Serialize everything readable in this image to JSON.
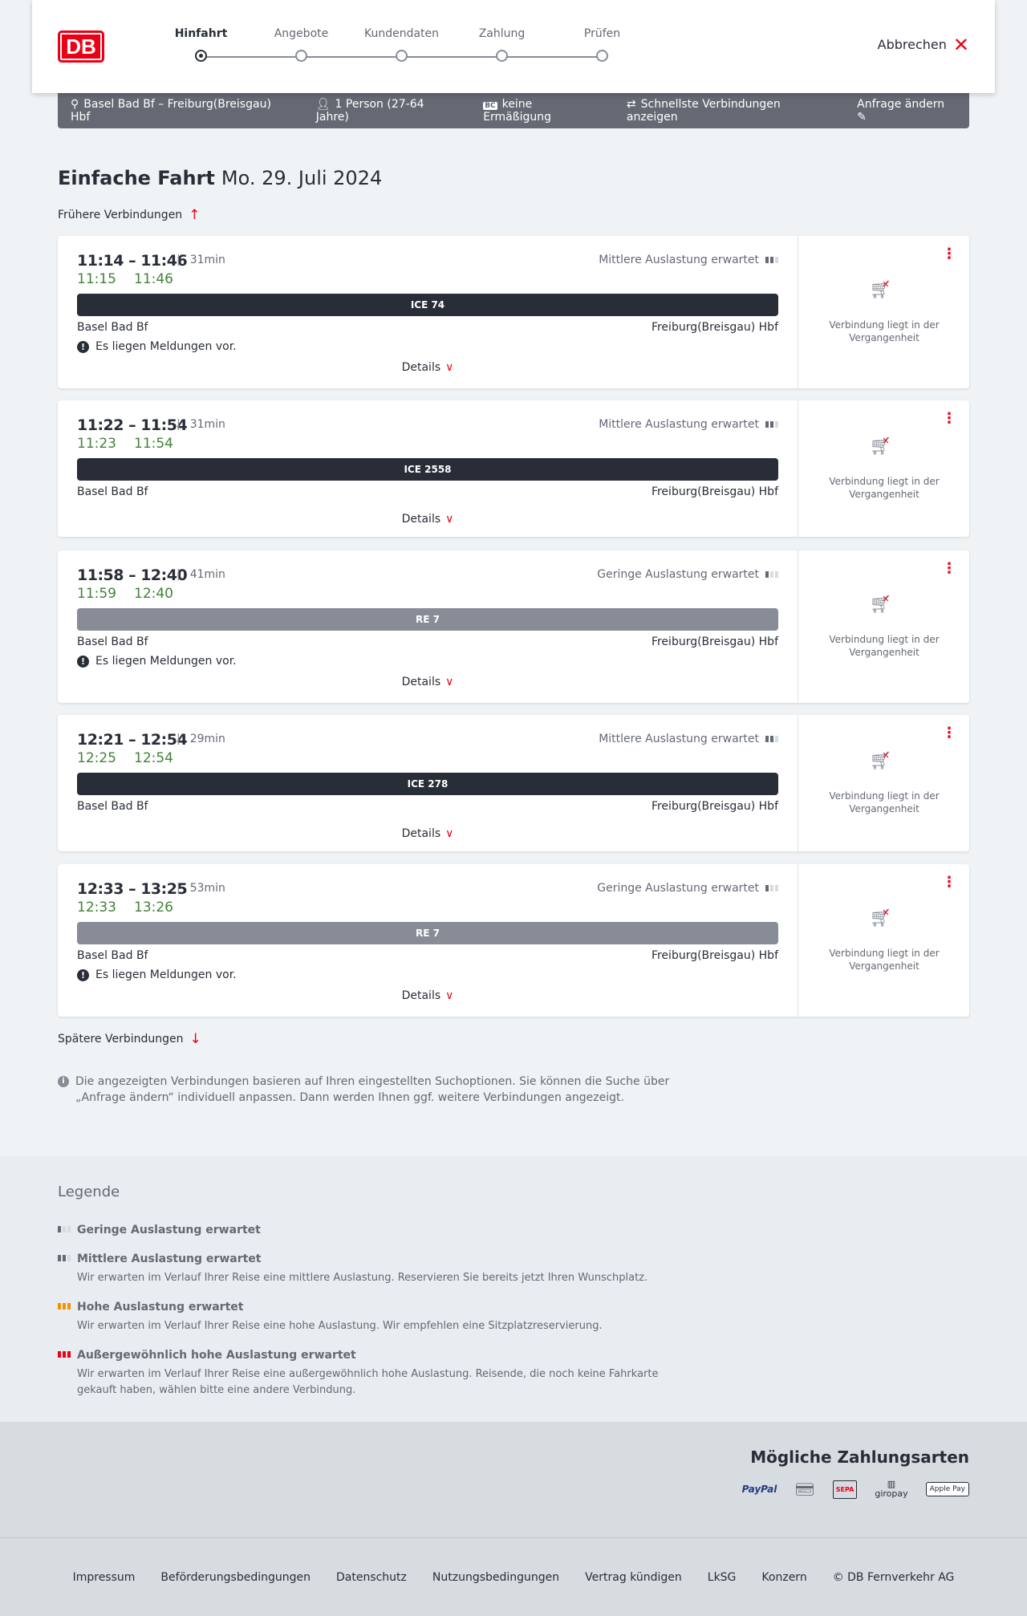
{
  "header": {
    "logo": "DB",
    "steps": [
      "Hinfahrt",
      "Angebote",
      "Kundendaten",
      "Zahlung",
      "Prüfen"
    ],
    "active_step": 0,
    "cancel": "Abbrechen"
  },
  "summary": {
    "route": "Basel Bad Bf – Freiburg(Breisgau) Hbf",
    "passengers": "1 Person (27-64 Jahre)",
    "discount_badge": "BC",
    "discount": "keine Ermäßigung",
    "option": "Schnellste Verbindungen anzeigen",
    "edit": "Anfrage ändern"
  },
  "page": {
    "title": "Einfache Fahrt",
    "date": "Mo. 29. Juli 2024",
    "earlier": "Frühere Verbindungen",
    "later": "Spätere Verbindungen",
    "details": "Details",
    "past": "Verbindung liegt in der Vergangenheit",
    "message": "Es liegen Meldungen vor.",
    "info": "Die angezeigten Verbindungen basieren auf Ihren eingestellten Suchoptionen. Sie können die Suche über „Anfrage ändern“ individuell anpassen. Dann werden Ihnen ggf. weitere Verbindungen angezeigt."
  },
  "connections": [
    {
      "time": "11:14 – 11:46",
      "duration": "31min",
      "rt_dep": "11:15",
      "rt_arr": "11:46",
      "load": "Mittlere Auslastung erwartet",
      "load_level": 2,
      "train": "ICE 74",
      "train_color": "#282d37",
      "from": "Basel Bad Bf",
      "to": "Freiburg(Breisgau) Hbf",
      "has_message": true
    },
    {
      "time": "11:22 – 11:54",
      "duration": "31min",
      "rt_dep": "11:23",
      "rt_arr": "11:54",
      "load": "Mittlere Auslastung erwartet",
      "load_level": 2,
      "train": "ICE 2558",
      "train_color": "#282d37",
      "from": "Basel Bad Bf",
      "to": "Freiburg(Breisgau) Hbf",
      "has_message": false
    },
    {
      "time": "11:58 – 12:40",
      "duration": "41min",
      "rt_dep": "11:59",
      "rt_arr": "12:40",
      "load": "Geringe Auslastung erwartet",
      "load_level": 1,
      "train": "RE 7",
      "train_color": "#878c96",
      "from": "Basel Bad Bf",
      "to": "Freiburg(Breisgau) Hbf",
      "has_message": true
    },
    {
      "time": "12:21 – 12:54",
      "duration": "29min",
      "rt_dep": "12:25",
      "rt_arr": "12:54",
      "load": "Mittlere Auslastung erwartet",
      "load_level": 2,
      "train": "ICE 278",
      "train_color": "#282d37",
      "from": "Basel Bad Bf",
      "to": "Freiburg(Breisgau) Hbf",
      "has_message": false
    },
    {
      "time": "12:33 – 13:25",
      "duration": "53min",
      "rt_dep": "12:33",
      "rt_arr": "13:26",
      "load": "Geringe Auslastung erwartet",
      "load_level": 1,
      "train": "RE 7",
      "train_color": "#878c96",
      "from": "Basel Bad Bf",
      "to": "Freiburg(Breisgau) Hbf",
      "has_message": true
    }
  ],
  "legend": {
    "title": "Legende",
    "items": [
      {
        "title": "Geringe Auslastung erwartet",
        "text": "",
        "level": 1,
        "color": "#646973"
      },
      {
        "title": "Mittlere Auslastung erwartet",
        "text": "Wir erwarten im Verlauf Ihrer Reise eine mittlere Auslastung. Reservieren Sie bereits jetzt Ihren Wunschplatz.",
        "level": 2,
        "color": "#646973"
      },
      {
        "title": "Hohe Auslastung erwartet",
        "text": "Wir erwarten im Verlauf Ihrer Reise eine hohe Auslastung. Wir empfehlen eine Sitzplatzreservierung.",
        "level": 3,
        "color": "#f39200"
      },
      {
        "title": "Außergewöhnlich hohe Auslastung erwartet",
        "text": "Wir erwarten im Verlauf Ihrer Reise eine außergewöhnlich hohe Auslastung. Reisende, die noch keine Fahrkarte gekauft haben, wählen bitte eine andere Verbindung.",
        "level": 4,
        "color": "#ec0016"
      }
    ]
  },
  "payment": {
    "title": "Mögliche Zahlungsarten",
    "methods": [
      "PayPal",
      "Kreditkarte",
      "SEPA",
      "giropay",
      "Apple Pay"
    ]
  },
  "footer": {
    "links": [
      "Impressum",
      "Beförderungsbedingungen",
      "Datenschutz",
      "Nutzungsbedingungen",
      "Vertrag kündigen",
      "LkSG",
      "Konzern",
      "© DB Fernverkehr AG"
    ]
  }
}
